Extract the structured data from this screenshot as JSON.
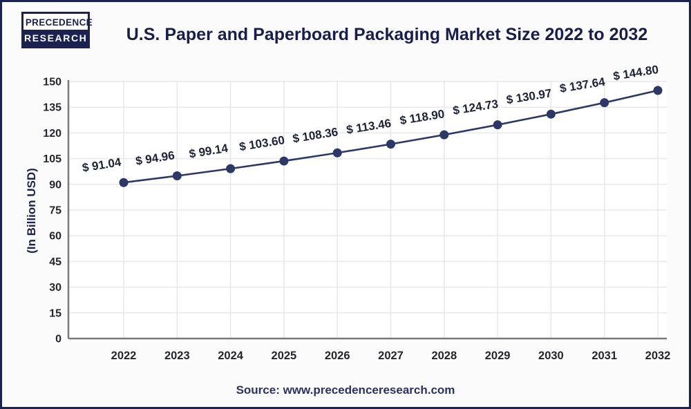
{
  "logo": {
    "line1": "PRECEDENCE",
    "line2": "RESEARCH"
  },
  "header": {
    "title": "U.S. Paper and Paperboard Packaging Market Size 2022 to 2032"
  },
  "source": {
    "text": "Source: www.precedenceresearch.com"
  },
  "chart_data": {
    "type": "line",
    "title": "U.S. Paper and Paperboard Packaging Market Size 2022 to 2032",
    "categories": [
      "2022",
      "2023",
      "2024",
      "2025",
      "2026",
      "2027",
      "2028",
      "2029",
      "2030",
      "2031",
      "2032"
    ],
    "values": [
      91.04,
      94.96,
      99.14,
      103.6,
      108.36,
      113.46,
      118.9,
      124.73,
      130.97,
      137.64,
      144.8
    ],
    "point_labels": [
      "$ 91.04",
      "$ 94.96",
      "$ 99.14",
      "$ 103.60",
      "$ 108.36",
      "$ 113.46",
      "$ 118.90",
      "$ 124.73",
      "$ 130.97",
      "$ 137.64",
      "$ 144.80"
    ],
    "xlabel": "",
    "ylabel": "(In Billion USD)",
    "ylim": [
      0,
      150
    ],
    "ytick_step": 15,
    "yticks": [
      0,
      15,
      30,
      45,
      60,
      75,
      90,
      105,
      120,
      135,
      150
    ],
    "grid": "both",
    "legend": "none",
    "colors": {
      "line": "#2b3868",
      "marker": "#2b3868",
      "navy": "#1b2150",
      "point_label": "#1c2237",
      "tick_label": "#23262e",
      "gridline": "#e8e8e8",
      "axis_line": "#77797e",
      "plot_bg": "#ffffff"
    }
  }
}
